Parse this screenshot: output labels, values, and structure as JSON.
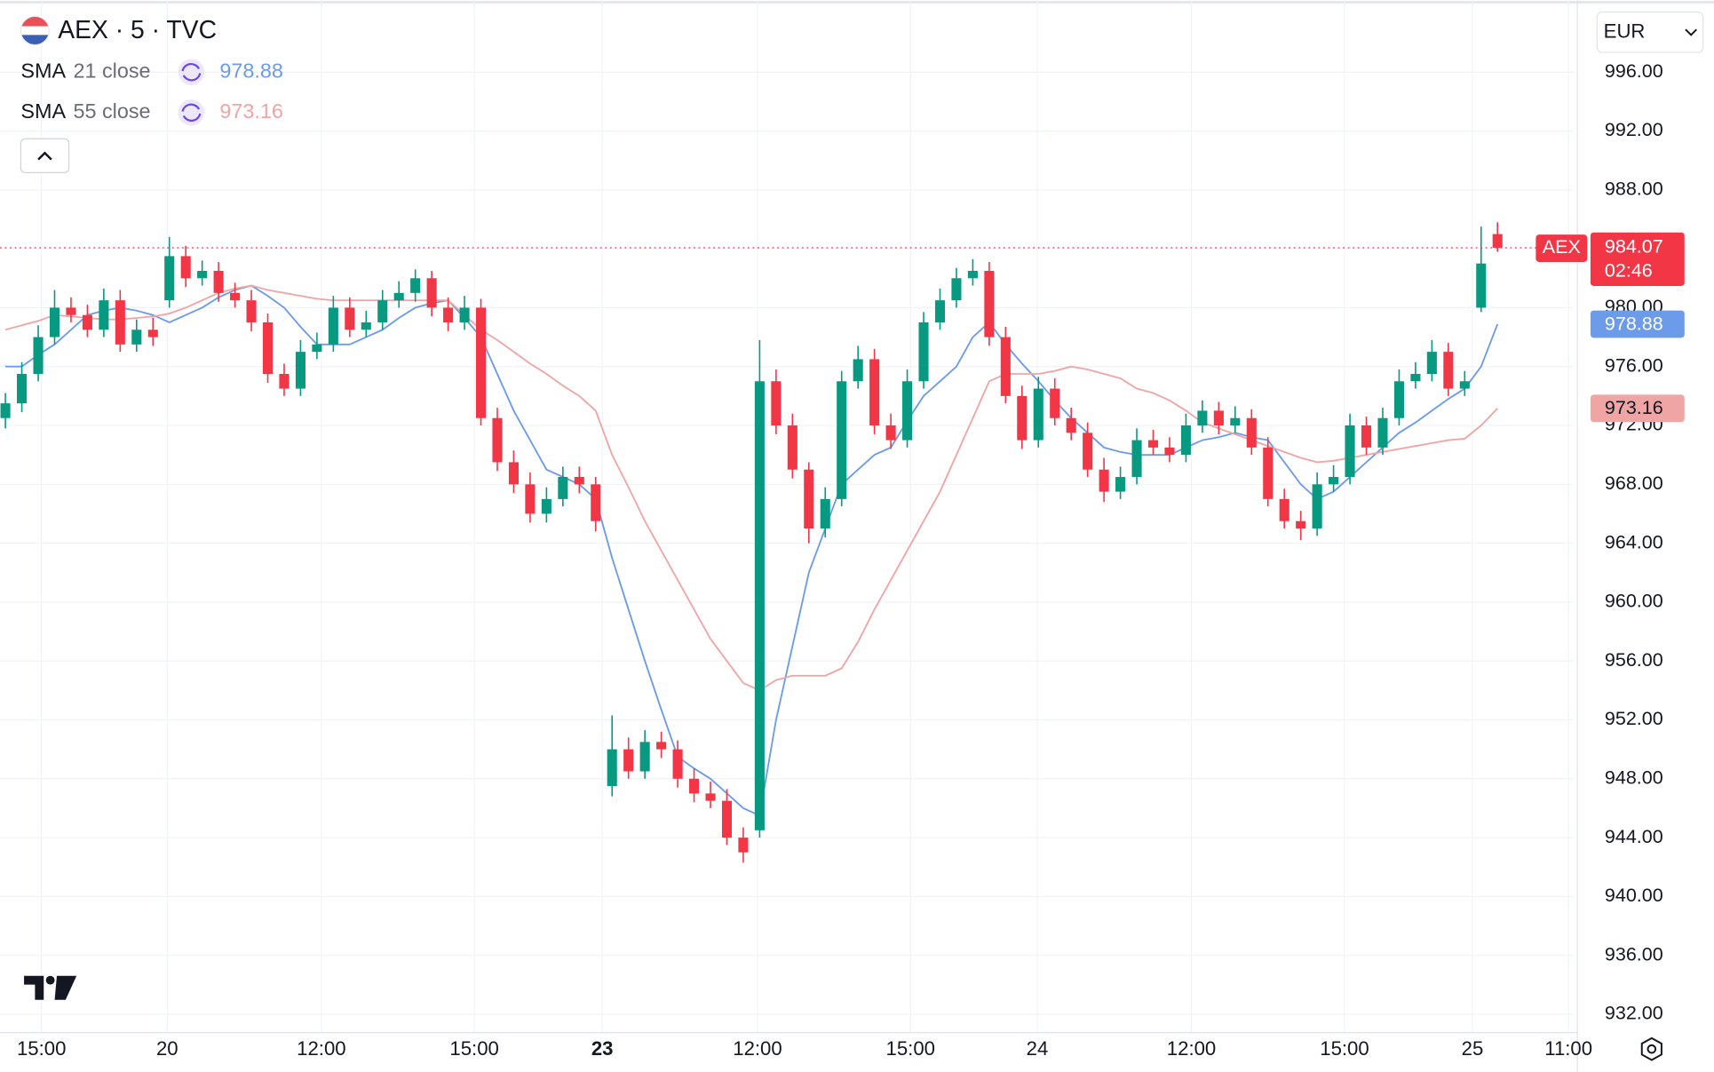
{
  "chart_data": {
    "type": "candlestick",
    "title": "AEX · 5 · TVC",
    "symbol": "AEX",
    "currency": "EUR",
    "countdown": "02:46",
    "up_color": "#089981",
    "down_color": "#f23645",
    "grid": true,
    "xlim": [
      -0.33,
      95.67
    ],
    "ylim": [
      930.75,
      1000.9
    ],
    "xticks": [
      {
        "value": 2.2,
        "label": "15:00"
      },
      {
        "value": 9.87,
        "label": "20"
      },
      {
        "value": 19.27,
        "label": "12:00"
      },
      {
        "value": 28.6,
        "label": "15:00"
      },
      {
        "value": 36.4,
        "label": "23",
        "bold": true
      },
      {
        "value": 45.87,
        "label": "12:00"
      },
      {
        "value": 55.2,
        "label": "15:00"
      },
      {
        "value": 62.93,
        "label": "24"
      },
      {
        "value": 72.33,
        "label": "12:00"
      },
      {
        "value": 81.67,
        "label": "15:00"
      },
      {
        "value": 89.47,
        "label": "25"
      },
      {
        "value": 95.33,
        "label": "11:00"
      }
    ],
    "yticks": [
      {
        "value": 932,
        "label": "932.00"
      },
      {
        "value": 936,
        "label": "936.00"
      },
      {
        "value": 940,
        "label": "940.00"
      },
      {
        "value": 944,
        "label": "944.00"
      },
      {
        "value": 948,
        "label": "948.00"
      },
      {
        "value": 952,
        "label": "952.00"
      },
      {
        "value": 956,
        "label": "956.00"
      },
      {
        "value": 960,
        "label": "960.00"
      },
      {
        "value": 964,
        "label": "964.00"
      },
      {
        "value": 968,
        "label": "968.00"
      },
      {
        "value": 972,
        "label": "972.00"
      },
      {
        "value": 976,
        "label": "976.00"
      },
      {
        "value": 980,
        "label": "980.00"
      },
      {
        "value": 984,
        "label": "984.00"
      },
      {
        "value": 988,
        "label": "988.00"
      },
      {
        "value": 992,
        "label": "992.00"
      },
      {
        "value": 996,
        "label": "996.00"
      }
    ],
    "open": [
      972.5,
      973.5,
      975.5,
      978,
      980,
      979.5,
      978.5,
      980.5,
      977.5,
      978.5,
      980.5,
      983.5,
      982,
      982.5,
      981,
      980.5,
      979,
      975.5,
      974.5,
      977,
      977.5,
      980,
      978.5,
      979,
      980.5,
      981,
      982,
      980,
      979,
      980,
      972.5,
      969.5,
      968,
      966,
      967,
      968.5,
      968,
      947.5,
      950,
      948.5,
      950.5,
      950,
      948,
      947,
      946.5,
      944,
      944.5,
      975,
      972,
      969,
      965,
      967,
      975,
      976.5,
      972,
      971,
      975,
      979,
      980.5,
      982,
      982.5,
      978,
      974,
      971,
      974.5,
      972.5,
      971.5,
      969,
      967.5,
      968.5,
      971,
      970.5,
      970,
      972,
      973,
      972,
      972.5,
      970.5,
      967,
      965.5,
      965,
      968,
      968.5,
      972,
      970.5,
      972.5,
      975,
      975.5,
      977,
      974.5,
      980,
      985
    ],
    "high": [
      974.2,
      976.3,
      978.8,
      981.2,
      980.7,
      980.2,
      981.3,
      981.2,
      979.2,
      979.3,
      984.8,
      984.2,
      983.2,
      983.1,
      981.7,
      981.2,
      979.6,
      976.2,
      977.8,
      978.3,
      980.8,
      980.7,
      979.8,
      981.2,
      981.8,
      982.6,
      982.5,
      980.7,
      980.8,
      980.6,
      973.2,
      970.3,
      968.8,
      967.8,
      969.2,
      969.2,
      968.5,
      952.3,
      950.8,
      951.3,
      951.2,
      950.6,
      948.7,
      947.8,
      947.3,
      944.7,
      977.8,
      975.8,
      972.8,
      969.5,
      967.8,
      975.7,
      977.4,
      977.2,
      972.8,
      975.8,
      979.7,
      981.3,
      982.7,
      983.3,
      983.1,
      978.7,
      974.7,
      975.3,
      975.2,
      973.2,
      972.2,
      969.8,
      969.2,
      971.8,
      971.7,
      971.2,
      972.8,
      973.7,
      973.6,
      973.3,
      973.1,
      971.2,
      967.7,
      966.2,
      968.8,
      969.3,
      972.8,
      972.6,
      973.2,
      975.8,
      976.3,
      977.8,
      977.6,
      975.7,
      985.5,
      985.8
    ],
    "low": [
      971.8,
      972.9,
      975,
      977.5,
      979,
      978,
      978,
      977,
      977,
      977.4,
      980,
      981.4,
      981.5,
      980.4,
      980,
      978.4,
      974.9,
      974,
      974,
      976.5,
      977,
      978,
      978,
      978.5,
      980,
      980.4,
      979.4,
      978.4,
      978.5,
      972,
      968.9,
      967.4,
      965.4,
      965.4,
      966.5,
      967.4,
      964.8,
      946.8,
      948,
      948,
      949.4,
      947.4,
      946.4,
      946,
      943.5,
      942.3,
      944,
      971.4,
      968.4,
      964,
      964.4,
      966.5,
      974.5,
      971.4,
      970.4,
      970.5,
      974.5,
      978.5,
      980,
      981.5,
      977.4,
      973.5,
      970.4,
      970.5,
      972,
      971,
      968.5,
      966.8,
      967,
      968,
      970,
      969.5,
      969.5,
      971.5,
      971.4,
      971.5,
      970,
      966.5,
      965,
      964.2,
      964.5,
      967.5,
      968,
      970,
      970,
      972,
      974.5,
      975,
      974,
      974,
      979.7,
      983.8
    ],
    "close": [
      973.5,
      975.5,
      978,
      980,
      979.5,
      978.5,
      980.5,
      977.5,
      978.5,
      978,
      983.5,
      982,
      982.5,
      981,
      980.5,
      979,
      975.5,
      974.5,
      977,
      977.5,
      980,
      978.5,
      979,
      980.5,
      981,
      982,
      980,
      979,
      980,
      972.5,
      969.5,
      968,
      966,
      967,
      968.5,
      968,
      965.5,
      950,
      948.5,
      950.5,
      950,
      948,
      947,
      946.5,
      944,
      943,
      975,
      972,
      969,
      965,
      967,
      975,
      976.5,
      972,
      971,
      975,
      979,
      980.5,
      982,
      982.5,
      978,
      974,
      971,
      974.5,
      972.5,
      971.5,
      969,
      967.5,
      968.5,
      971,
      970.5,
      970,
      972,
      973,
      972,
      972.5,
      970.5,
      967,
      965.5,
      965,
      968,
      968.5,
      972,
      970.5,
      972.5,
      975,
      975.5,
      977,
      974.5,
      975,
      983,
      984.07
    ],
    "series": [
      {
        "name": "SMA",
        "params": "21 close",
        "color": "#6c9bea",
        "values": [
          976,
          976,
          976.8,
          977.5,
          978.5,
          979.5,
          979.8,
          980,
          979.8,
          979.5,
          979,
          979.5,
          980,
          980.7,
          981.2,
          981.5,
          980.8,
          980,
          978.7,
          977.5,
          977.5,
          977.5,
          978,
          978.5,
          979.3,
          980,
          980.3,
          980.5,
          979.3,
          978,
          975.5,
          973,
          971,
          969,
          968.5,
          968,
          967,
          963,
          959.5,
          956,
          952.7,
          949.5,
          948.7,
          948,
          947,
          946,
          945.5,
          952,
          957,
          962,
          965,
          968,
          969,
          970,
          970.5,
          972.3,
          974,
          975,
          976,
          978,
          979,
          977.5,
          976.2,
          975,
          973.7,
          972.5,
          971.5,
          970.5,
          970.2,
          970,
          970,
          970,
          970.5,
          971,
          971.2,
          971.5,
          971.2,
          971,
          969.5,
          968,
          967,
          967.5,
          968.5,
          969.5,
          970.5,
          971.5,
          972.2,
          973,
          973.8,
          974.5,
          976,
          978.88
        ]
      },
      {
        "name": "SMA",
        "params": "55 close",
        "color": "#f0a5a5",
        "values": [
          978.5,
          978.8,
          979.1,
          979.5,
          979.4,
          979.3,
          979.2,
          979.2,
          979.3,
          979.4,
          979.6,
          980,
          980.5,
          981,
          981.3,
          981.5,
          981.2,
          981,
          980.8,
          980.6,
          980.5,
          980.5,
          980.5,
          980.5,
          980.5,
          980.5,
          980.5,
          980.5,
          979.5,
          978.5,
          977.8,
          977,
          976.2,
          975.5,
          974.7,
          974,
          973,
          970,
          967.8,
          965.5,
          963.5,
          961.5,
          959.5,
          957.5,
          956,
          954.5,
          954,
          954.7,
          955,
          955,
          955,
          955.5,
          957.3,
          959.5,
          961.5,
          963.5,
          965.5,
          967.5,
          970,
          972.5,
          975,
          975.5,
          975.5,
          975.5,
          975.7,
          976,
          975.8,
          975.5,
          975.2,
          974.5,
          974.2,
          973.7,
          973,
          972.2,
          971.8,
          971.4,
          971,
          970.6,
          970.2,
          969.8,
          969.5,
          969.6,
          969.8,
          970,
          970.2,
          970.4,
          970.6,
          970.8,
          971,
          971.1,
          972,
          973.16
        ]
      }
    ]
  }
}
